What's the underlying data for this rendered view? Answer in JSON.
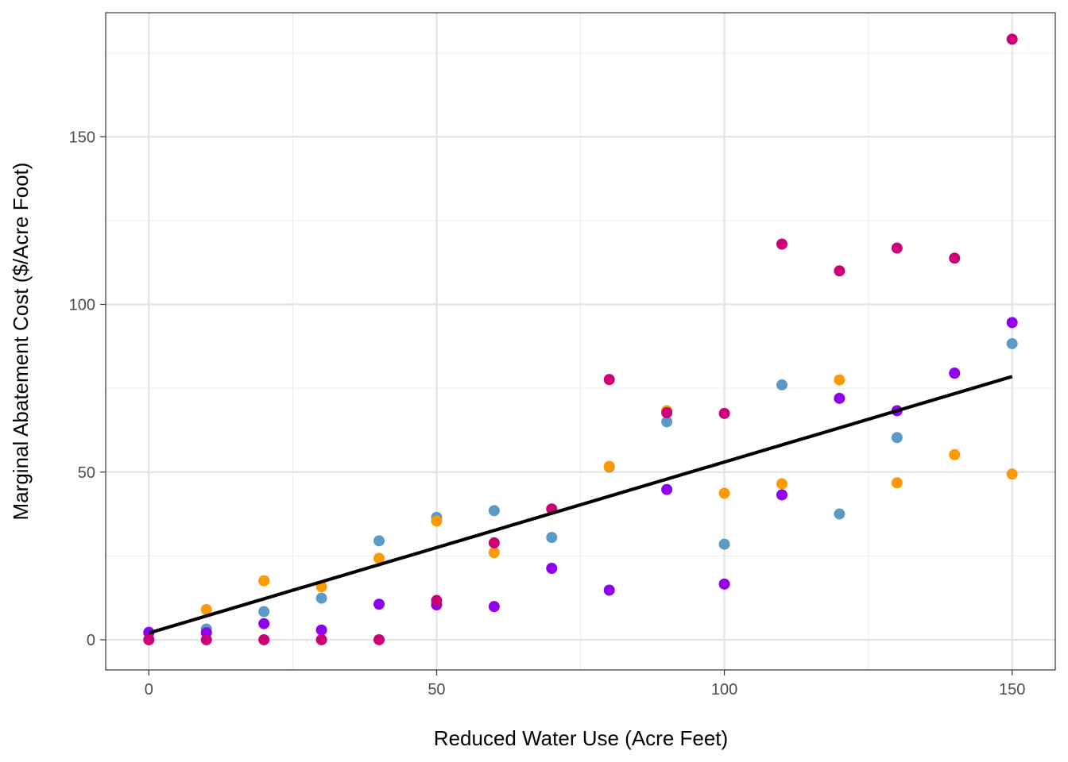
{
  "chart_data": {
    "type": "scatter",
    "title": "",
    "xlabel": "Reduced Water Use (Acre Feet)",
    "ylabel": "Marginal Abatement Cost ($/Acre Foot)",
    "xlim": [
      -7.5,
      157.5
    ],
    "ylim": [
      -9,
      187
    ],
    "x_ticks": [
      0,
      50,
      100,
      150
    ],
    "y_ticks": [
      0,
      50,
      100,
      150
    ],
    "x_tick_labels": [
      "0",
      "50",
      "100",
      "150"
    ],
    "y_tick_labels": [
      "0",
      "50",
      "100",
      "150"
    ],
    "grid": true,
    "legend": "none",
    "series": [
      {
        "color": "#5B9AC6",
        "points": [
          [
            0,
            2
          ],
          [
            10,
            3.2
          ],
          [
            20,
            8.4
          ],
          [
            30,
            12.4
          ],
          [
            40,
            29.5
          ],
          [
            50,
            36.5
          ],
          [
            60,
            38.5
          ],
          [
            70,
            30.5
          ],
          [
            80,
            51.5
          ],
          [
            90,
            65
          ],
          [
            100,
            28.5
          ],
          [
            110,
            76
          ],
          [
            120,
            37.5
          ],
          [
            130,
            60.3
          ],
          [
            140,
            79.5
          ],
          [
            150,
            88.3
          ]
        ]
      },
      {
        "color": "#FF9900",
        "points": [
          [
            0,
            0
          ],
          [
            10,
            9
          ],
          [
            20,
            17.6
          ],
          [
            30,
            15.8
          ],
          [
            40,
            24.3
          ],
          [
            50,
            35.4
          ],
          [
            60,
            26
          ],
          [
            70,
            39
          ],
          [
            80,
            51.7
          ],
          [
            90,
            68.3
          ],
          [
            100,
            43.7
          ],
          [
            110,
            46.5
          ],
          [
            120,
            77.5
          ],
          [
            130,
            46.8
          ],
          [
            140,
            55.2
          ],
          [
            150,
            49.4
          ]
        ]
      },
      {
        "color": "#8F00EE",
        "points": [
          [
            0,
            2.2
          ],
          [
            10,
            2.1
          ],
          [
            20,
            4.8
          ],
          [
            30,
            2.9
          ],
          [
            40,
            10.6
          ],
          [
            50,
            10.4
          ],
          [
            60,
            9.9
          ],
          [
            70,
            21.3
          ],
          [
            80,
            14.8
          ],
          [
            90,
            44.8
          ],
          [
            100,
            16.6
          ],
          [
            110,
            43.2
          ],
          [
            120,
            72
          ],
          [
            130,
            68.3
          ],
          [
            140,
            79.5
          ],
          [
            150,
            94.6
          ]
        ]
      },
      {
        "color": "#CC0077",
        "points": [
          [
            0,
            0
          ],
          [
            10,
            0
          ],
          [
            20,
            0
          ],
          [
            30,
            0
          ],
          [
            40,
            0
          ],
          [
            50,
            11.7
          ],
          [
            60,
            28.9
          ],
          [
            70,
            39
          ],
          [
            80,
            77.6
          ],
          [
            90,
            67.7
          ],
          [
            100,
            67.5
          ],
          [
            110,
            118
          ],
          [
            120,
            110
          ],
          [
            130,
            116.8
          ],
          [
            140,
            113.8
          ],
          [
            150,
            179.1
          ]
        ]
      }
    ],
    "trend_line": {
      "type": "linear-fit",
      "color": "#000000",
      "points": [
        [
          0,
          2
        ],
        [
          150,
          78.5
        ]
      ]
    }
  }
}
